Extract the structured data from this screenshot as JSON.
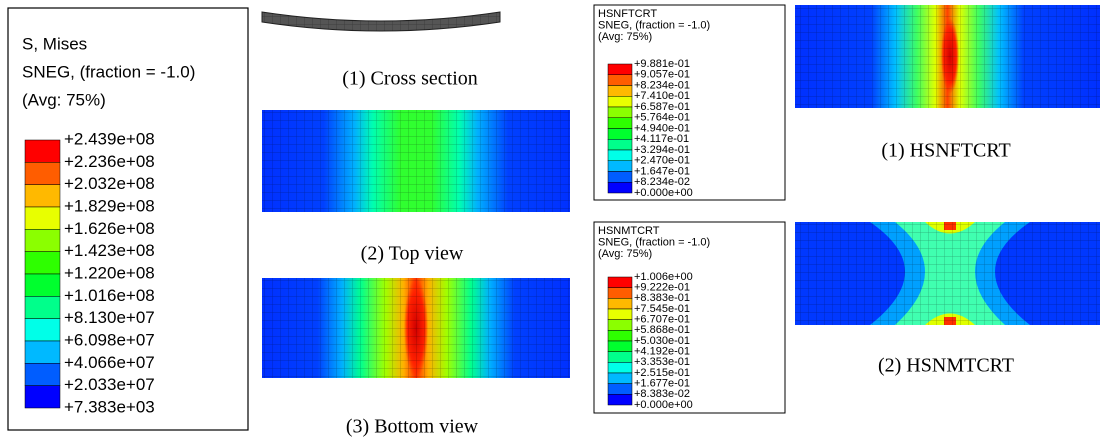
{
  "legend_mises": {
    "lines": [
      "S, Mises",
      "SNEG, (fraction = -1.0)",
      "(Avg: 75%)"
    ],
    "labels": [
      "+2.439e+08",
      "+2.236e+08",
      "+2.032e+08",
      "+1.829e+08",
      "+1.626e+08",
      "+1.423e+08",
      "+1.220e+08",
      "+1.016e+08",
      "+8.130e+07",
      "+6.098e+07",
      "+4.066e+07",
      "+2.033e+07",
      "+7.383e+03"
    ]
  },
  "captions_left": [
    "(1) Cross section",
    "(2) Top view",
    "(3) Bottom view"
  ],
  "legend_hsnftcrt": {
    "lines": [
      "HSNFTCRT",
      "SNEG, (fraction = -1.0)",
      "(Avg: 75%)"
    ],
    "labels": [
      "+9.881e-01",
      "+9.057e-01",
      "+8.234e-01",
      "+7.410e-01",
      "+6.587e-01",
      "+5.764e-01",
      "+4.940e-01",
      "+4.117e-01",
      "+3.294e-01",
      "+2.470e-01",
      "+1.647e-01",
      "+8.234e-02",
      "+0.000e+00"
    ]
  },
  "legend_hsnmtcrt": {
    "lines": [
      "HSNMTCRT",
      "SNEG, (fraction = -1.0)",
      "(Avg: 75%)"
    ],
    "labels": [
      "+1.006e+00",
      "+9.222e-01",
      "+8.383e-01",
      "+7.545e-01",
      "+6.707e-01",
      "+5.868e-01",
      "+5.030e-01",
      "+4.192e-01",
      "+3.353e-01",
      "+2.515e-01",
      "+1.677e-01",
      "+8.383e-02",
      "+0.000e+00"
    ]
  },
  "captions_right": [
    "(1) HSNFTCRT",
    "(2) HSNMTCRT"
  ]
}
